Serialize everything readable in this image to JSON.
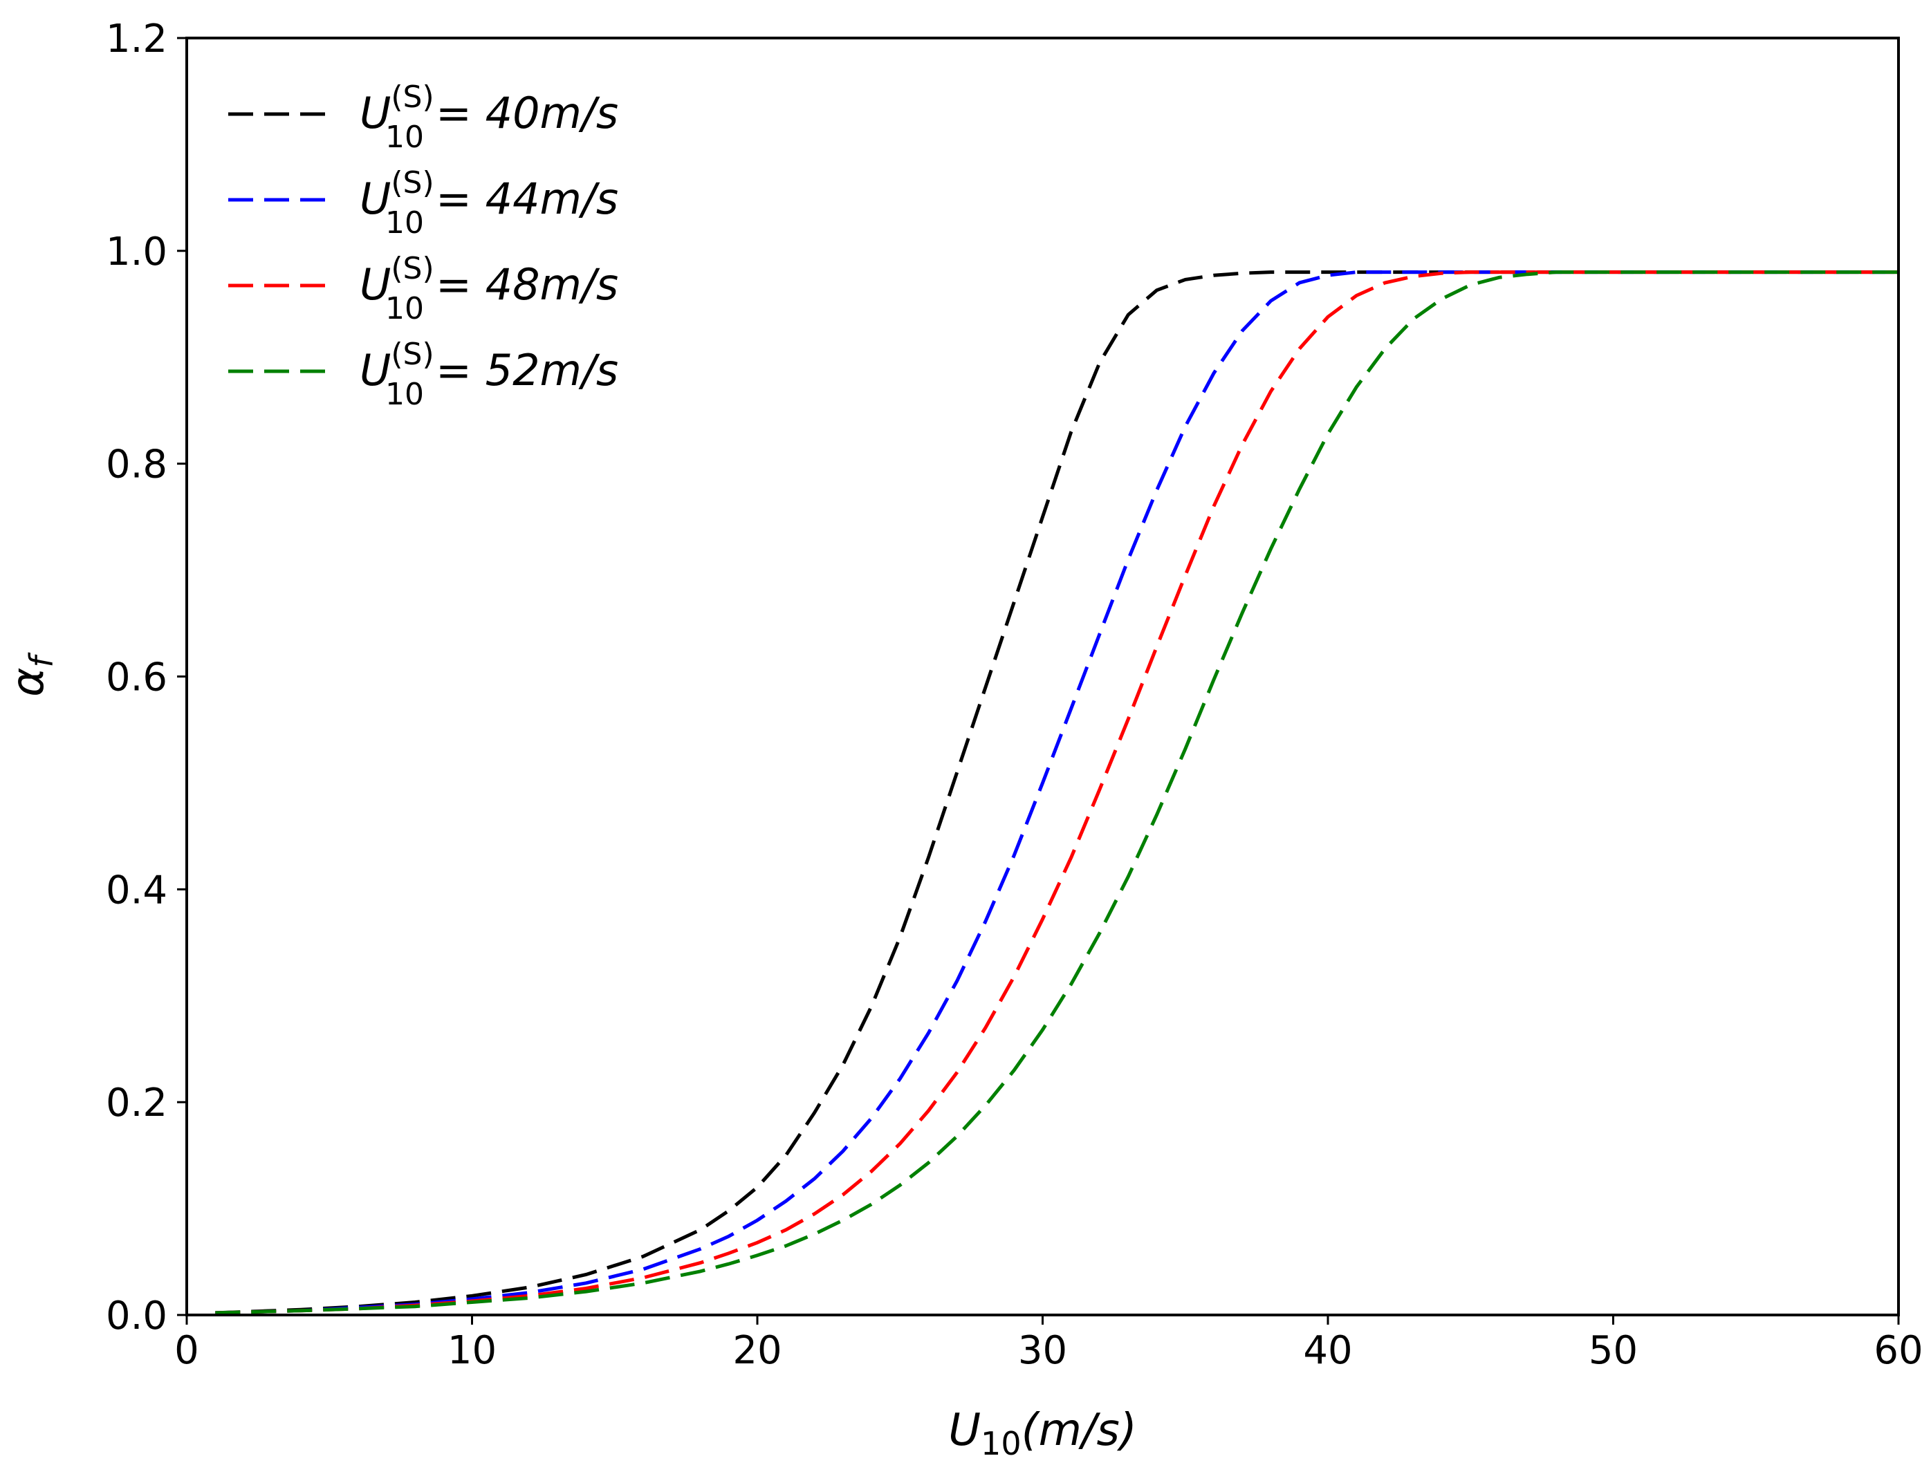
{
  "chart_data": {
    "type": "line",
    "title": "",
    "xlabel": {
      "symbol": "U",
      "subscript": "10",
      "unit": "(m/s)"
    },
    "ylabel": {
      "symbol": "α",
      "subscript": "f"
    },
    "xlim": [
      0,
      60
    ],
    "ylim": [
      0,
      1.2
    ],
    "xticks": [
      0,
      10,
      20,
      30,
      40,
      50,
      60
    ],
    "xtick_labels": [
      "0",
      "10",
      "20",
      "30",
      "40",
      "50",
      "60"
    ],
    "yticks": [
      0.0,
      0.2,
      0.4,
      0.6,
      0.8,
      1.0,
      1.2
    ],
    "ytick_labels": [
      "0.0",
      "0.2",
      "0.4",
      "0.6",
      "0.8",
      "1.0",
      "1.2"
    ],
    "grid": false,
    "legend_position": "top-left",
    "line_style": "dashed",
    "x": [
      1,
      4,
      6,
      8,
      10,
      12,
      14,
      16,
      18,
      19,
      20,
      21,
      22,
      23,
      24,
      25,
      26,
      27,
      28,
      29,
      30,
      31,
      32,
      33,
      34,
      35,
      36,
      37,
      38,
      39,
      40,
      41,
      42,
      43,
      44,
      45,
      46,
      47,
      48,
      50,
      55,
      60
    ],
    "series": [
      {
        "name": "U10(S) = 40m/s",
        "legend": {
          "symbol": "U",
          "sup": "(S)",
          "sub": "10",
          "rest": "= 40m/s"
        },
        "color": "#000000",
        "values": [
          0.002,
          0.005,
          0.008,
          0.012,
          0.018,
          0.026,
          0.038,
          0.055,
          0.08,
          0.098,
          0.12,
          0.15,
          0.19,
          0.235,
          0.29,
          0.355,
          0.43,
          0.51,
          0.59,
          0.67,
          0.75,
          0.83,
          0.895,
          0.94,
          0.963,
          0.973,
          0.977,
          0.979,
          0.98,
          0.98,
          0.98,
          0.98,
          0.98,
          0.98,
          0.98,
          0.98,
          0.98,
          0.98,
          0.98,
          0.98,
          0.98,
          0.98
        ]
      },
      {
        "name": "U10(S) = 44m/s",
        "legend": {
          "symbol": "U",
          "sup": "(S)",
          "sub": "10",
          "rest": "= 44m/s"
        },
        "color": "#0000ff",
        "values": [
          0.002,
          0.004,
          0.007,
          0.01,
          0.015,
          0.021,
          0.03,
          0.043,
          0.062,
          0.074,
          0.089,
          0.107,
          0.128,
          0.154,
          0.185,
          0.222,
          0.265,
          0.314,
          0.37,
          0.432,
          0.5,
          0.57,
          0.64,
          0.71,
          0.775,
          0.835,
          0.885,
          0.925,
          0.953,
          0.97,
          0.977,
          0.98,
          0.98,
          0.98,
          0.98,
          0.98,
          0.98,
          0.98,
          0.98,
          0.98,
          0.98,
          0.98
        ]
      },
      {
        "name": "U10(S) = 48m/s",
        "legend": {
          "symbol": "U",
          "sup": "(S)",
          "sub": "10",
          "rest": "= 48m/s"
        },
        "color": "#ff0000",
        "values": [
          0.002,
          0.004,
          0.006,
          0.009,
          0.013,
          0.018,
          0.025,
          0.035,
          0.049,
          0.058,
          0.068,
          0.08,
          0.095,
          0.113,
          0.135,
          0.161,
          0.192,
          0.228,
          0.27,
          0.318,
          0.372,
          0.43,
          0.494,
          0.56,
          0.628,
          0.695,
          0.76,
          0.818,
          0.868,
          0.908,
          0.938,
          0.958,
          0.97,
          0.976,
          0.979,
          0.98,
          0.98,
          0.98,
          0.98,
          0.98,
          0.98,
          0.98
        ]
      },
      {
        "name": "U10(S) = 52m/s",
        "legend": {
          "symbol": "U",
          "sup": "(S)",
          "sub": "10",
          "rest": "= 52m/s"
        },
        "color": "#008000",
        "values": [
          0.002,
          0.004,
          0.006,
          0.008,
          0.012,
          0.016,
          0.022,
          0.03,
          0.041,
          0.048,
          0.056,
          0.065,
          0.076,
          0.089,
          0.104,
          0.122,
          0.143,
          0.168,
          0.197,
          0.23,
          0.268,
          0.311,
          0.359,
          0.412,
          0.47,
          0.532,
          0.597,
          0.66,
          0.72,
          0.776,
          0.828,
          0.872,
          0.908,
          0.936,
          0.955,
          0.968,
          0.975,
          0.978,
          0.98,
          0.98,
          0.98,
          0.98
        ]
      }
    ]
  }
}
